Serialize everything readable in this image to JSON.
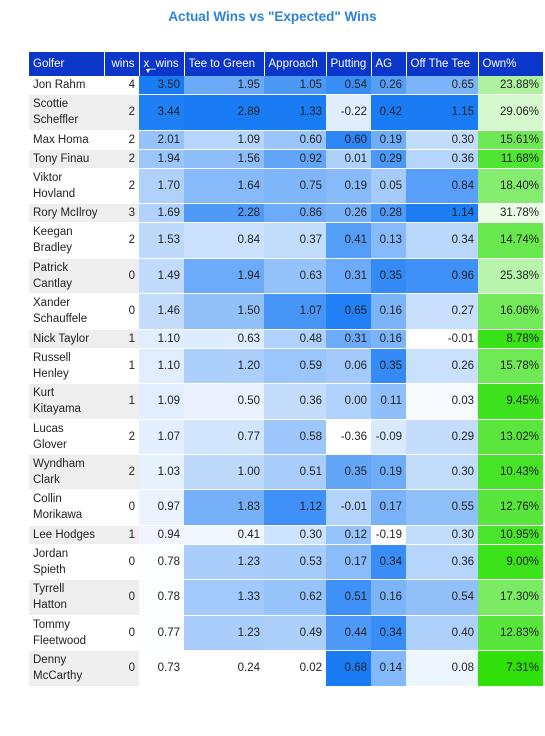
{
  "chart_data": {
    "type": "table",
    "title": "Actual Wins vs \"Expected\" Wins",
    "columns": [
      "Golfer",
      "wins",
      "x_wins",
      "Tee to Green",
      "Approach",
      "Putting",
      "AG",
      "Off The Tee",
      "Own%"
    ],
    "sorted_column": "x_wins",
    "rows": [
      {
        "golfer": "Jon Rahm",
        "wins": "4",
        "x_wins": "3.50",
        "ttg": "1.95",
        "app": "1.05",
        "putt": "0.54",
        "ag": "0.26",
        "ott": "0.65",
        "own": "23.88%"
      },
      {
        "golfer": "Scottie Scheffler",
        "wins": "2",
        "x_wins": "3.44",
        "ttg": "2.89",
        "app": "1.33",
        "putt": "-0.22",
        "ag": "0.42",
        "ott": "1.15",
        "own": "29.06%"
      },
      {
        "golfer": "Max Homa",
        "wins": "2",
        "x_wins": "2.01",
        "ttg": "1.09",
        "app": "0.60",
        "putt": "0.60",
        "ag": "0.19",
        "ott": "0.30",
        "own": "15.61%"
      },
      {
        "golfer": "Tony Finau",
        "wins": "2",
        "x_wins": "1.94",
        "ttg": "1.56",
        "app": "0.92",
        "putt": "0.01",
        "ag": "0.29",
        "ott": "0.36",
        "own": "11.68%"
      },
      {
        "golfer": "Viktor Hovland",
        "wins": "2",
        "x_wins": "1.70",
        "ttg": "1.64",
        "app": "0.75",
        "putt": "0.19",
        "ag": "0.05",
        "ott": "0.84",
        "own": "18.40%"
      },
      {
        "golfer": "Rory McIlroy",
        "wins": "3",
        "x_wins": "1.69",
        "ttg": "2.28",
        "app": "0.86",
        "putt": "0.26",
        "ag": "0.28",
        "ott": "1.14",
        "own": "31.78%"
      },
      {
        "golfer": "Keegan Bradley",
        "wins": "2",
        "x_wins": "1.53",
        "ttg": "0.84",
        "app": "0.37",
        "putt": "0.41",
        "ag": "0.13",
        "ott": "0.34",
        "own": "14.74%"
      },
      {
        "golfer": "Patrick Cantlay",
        "wins": "0",
        "x_wins": "1.49",
        "ttg": "1.94",
        "app": "0.63",
        "putt": "0.31",
        "ag": "0.35",
        "ott": "0.96",
        "own": "25.38%"
      },
      {
        "golfer": "Xander Schauffele",
        "wins": "0",
        "x_wins": "1.46",
        "ttg": "1.50",
        "app": "1.07",
        "putt": "0.65",
        "ag": "0.16",
        "ott": "0.27",
        "own": "16.06%"
      },
      {
        "golfer": "Nick Taylor",
        "wins": "1",
        "x_wins": "1.10",
        "ttg": "0.63",
        "app": "0.48",
        "putt": "0.31",
        "ag": "0.16",
        "ott": "-0.01",
        "own": "8.78%"
      },
      {
        "golfer": "Russell Henley",
        "wins": "1",
        "x_wins": "1.10",
        "ttg": "1.20",
        "app": "0.59",
        "putt": "0.06",
        "ag": "0.35",
        "ott": "0.26",
        "own": "15.78%"
      },
      {
        "golfer": "Kurt Kitayama",
        "wins": "1",
        "x_wins": "1.09",
        "ttg": "0.50",
        "app": "0.36",
        "putt": "0.00",
        "ag": "0.11",
        "ott": "0.03",
        "own": "9.45%"
      },
      {
        "golfer": "Lucas Glover",
        "wins": "2",
        "x_wins": "1.07",
        "ttg": "0.77",
        "app": "0.58",
        "putt": "-0.36",
        "ag": "-0.09",
        "ott": "0.29",
        "own": "13.02%"
      },
      {
        "golfer": "Wyndham Clark",
        "wins": "2",
        "x_wins": "1.03",
        "ttg": "1.00",
        "app": "0.51",
        "putt": "0.35",
        "ag": "0.19",
        "ott": "0.30",
        "own": "10.43%"
      },
      {
        "golfer": "Collin Morikawa",
        "wins": "0",
        "x_wins": "0.97",
        "ttg": "1.83",
        "app": "1.12",
        "putt": "-0.01",
        "ag": "0.17",
        "ott": "0.55",
        "own": "12.76%"
      },
      {
        "golfer": "Lee Hodges",
        "wins": "1",
        "x_wins": "0.94",
        "ttg": "0.41",
        "app": "0.30",
        "putt": "0.12",
        "ag": "-0.19",
        "ott": "0.30",
        "own": "10.95%"
      },
      {
        "golfer": "Jordan Spieth",
        "wins": "0",
        "x_wins": "0.78",
        "ttg": "1.23",
        "app": "0.53",
        "putt": "0.17",
        "ag": "0.34",
        "ott": "0.36",
        "own": "9.00%"
      },
      {
        "golfer": "Tyrrell Hatton",
        "wins": "0",
        "x_wins": "0.78",
        "ttg": "1.33",
        "app": "0.62",
        "putt": "0.51",
        "ag": "0.16",
        "ott": "0.54",
        "own": "17.30%"
      },
      {
        "golfer": "Tommy Fleetwood",
        "wins": "0",
        "x_wins": "0.77",
        "ttg": "1.23",
        "app": "0.49",
        "putt": "0.44",
        "ag": "0.34",
        "ott": "0.40",
        "own": "12.83%"
      },
      {
        "golfer": "Denny McCarthy",
        "wins": "0",
        "x_wins": "0.73",
        "ttg": "0.24",
        "app": "0.02",
        "putt": "0.68",
        "ag": "0.14",
        "ott": "0.08",
        "own": "7.31%"
      }
    ],
    "color_scale": {
      "blue_low": "#ffffff",
      "blue_high": "#1a7cf5",
      "green_low": "#eafbe6",
      "green_high": "#2fe00b"
    }
  }
}
